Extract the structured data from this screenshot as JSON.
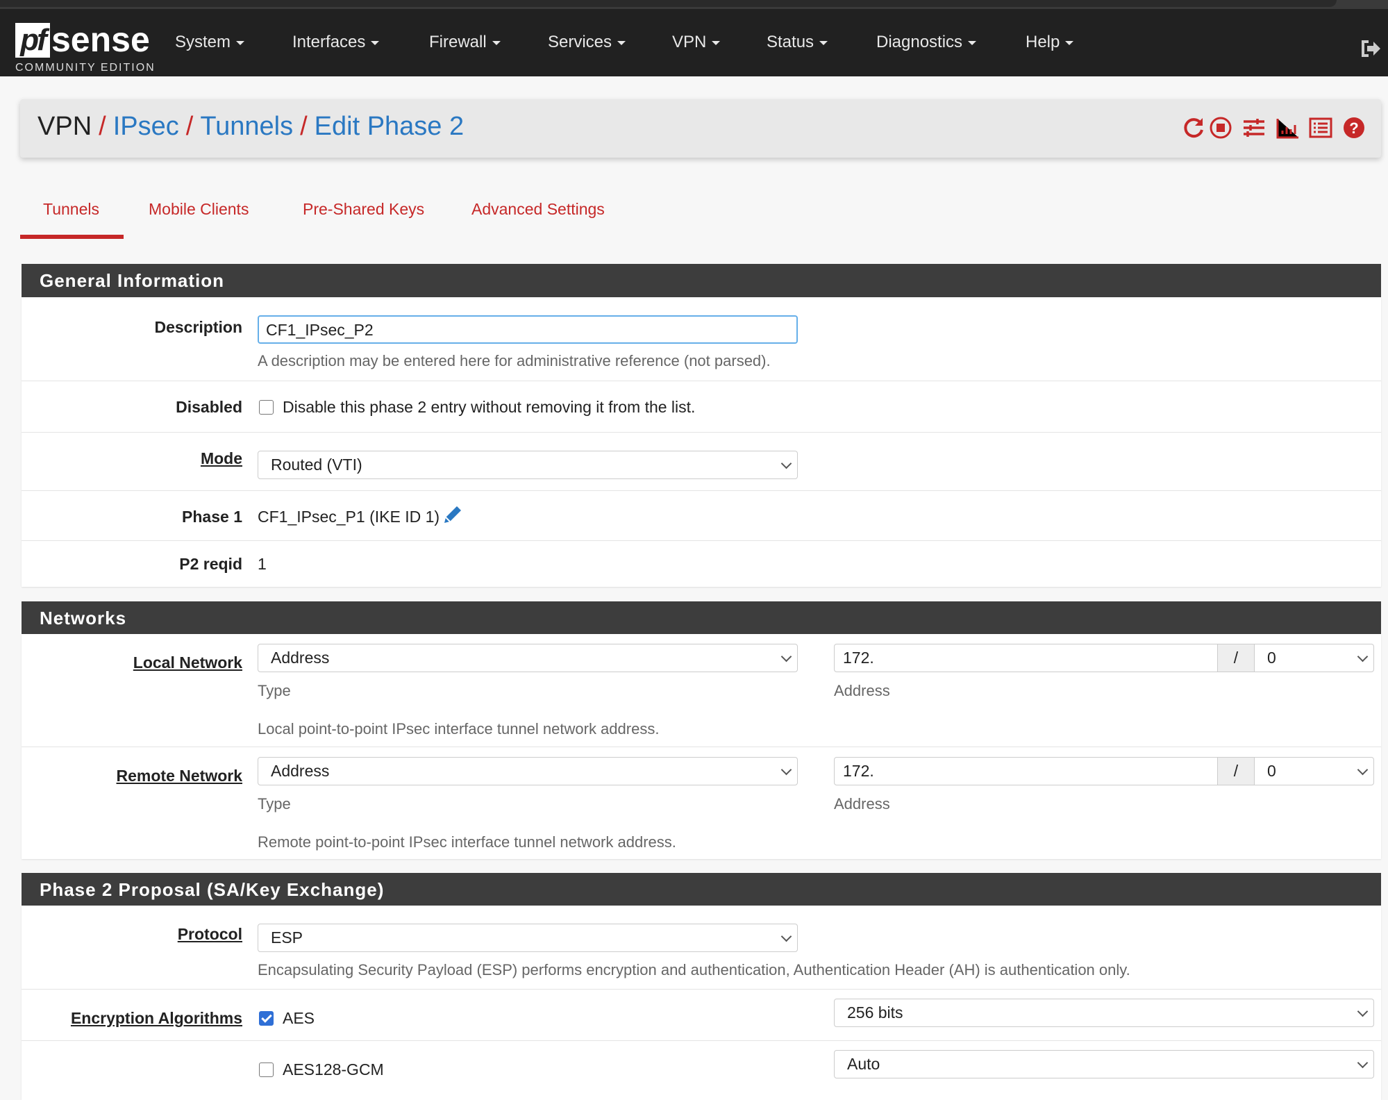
{
  "nav": {
    "logo_text": "pfsense",
    "logo_subtitle": "COMMUNITY EDITION",
    "items": [
      "System",
      "Interfaces",
      "Firewall",
      "Services",
      "VPN",
      "Status",
      "Diagnostics",
      "Help"
    ]
  },
  "breadcrumb": {
    "items": [
      "VPN",
      "IPsec",
      "Tunnels",
      "Edit Phase 2"
    ],
    "separator": "/"
  },
  "toolbar_icons": [
    "restart-icon",
    "stop-icon",
    "settings-sliders-icon",
    "chart-icon",
    "log-list-icon",
    "help-icon"
  ],
  "tabs": [
    {
      "label": "Tunnels",
      "active": true
    },
    {
      "label": "Mobile Clients"
    },
    {
      "label": "Pre-Shared Keys"
    },
    {
      "label": "Advanced Settings"
    }
  ],
  "general": {
    "title": "General Information",
    "description": {
      "label": "Description",
      "value": "CF1_IPsec_P2",
      "help": "A description may be entered here for administrative reference (not parsed)."
    },
    "disabled": {
      "label": "Disabled",
      "checked": false,
      "text": "Disable this phase 2 entry without removing it from the list."
    },
    "mode": {
      "label": "Mode",
      "value": "Routed (VTI)"
    },
    "phase1": {
      "label": "Phase 1",
      "value": "CF1_IPsec_P1 (IKE ID 1)"
    },
    "reqid": {
      "label": "P2 reqid",
      "value": "1"
    }
  },
  "networks": {
    "title": "Networks",
    "local": {
      "label": "Local Network",
      "type": "Address",
      "type_label": "Type",
      "address": "172.",
      "address_label": "Address",
      "slash": "/",
      "mask": "0",
      "help": "Local point-to-point IPsec interface tunnel network address."
    },
    "remote": {
      "label": "Remote Network",
      "type": "Address",
      "type_label": "Type",
      "address": "172.",
      "address_label": "Address",
      "slash": "/",
      "mask": "0",
      "help": "Remote point-to-point IPsec interface tunnel network address."
    }
  },
  "proposal": {
    "title": "Phase 2 Proposal (SA/Key Exchange)",
    "protocol": {
      "label": "Protocol",
      "value": "ESP",
      "help": "Encapsulating Security Payload (ESP) performs encryption and authentication, Authentication Header (AH) is authentication only."
    },
    "encryption": {
      "label": "Encryption Algorithms",
      "algorithms": [
        {
          "name": "AES",
          "checked": true,
          "keylen": "256 bits"
        },
        {
          "name": "AES128-GCM",
          "checked": false,
          "keylen": "Auto"
        }
      ]
    }
  },
  "colors": {
    "accent": "#c62828",
    "link": "#2a78c2",
    "nav_bg": "#212121",
    "section_bg": "#3d3d3d"
  }
}
